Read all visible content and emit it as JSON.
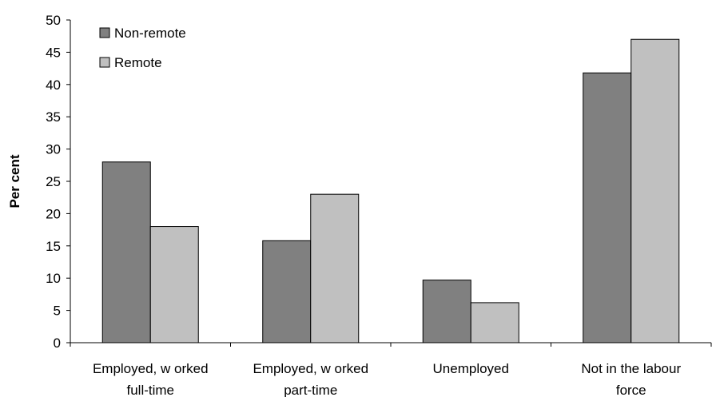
{
  "chart_data": {
    "type": "bar",
    "title": "",
    "xlabel": "",
    "ylabel": "Per cent",
    "ylim": [
      0,
      50
    ],
    "ytick_step": 5,
    "grid": false,
    "legend_position": "top-left",
    "categories": [
      [
        "Employed, w orked",
        "full-time"
      ],
      [
        "Employed, w orked",
        "part-time"
      ],
      [
        "Unemployed"
      ],
      [
        "Not in the labour",
        "force"
      ]
    ],
    "series": [
      {
        "name": "Non-remote",
        "color": "#808080",
        "values": [
          28,
          15.8,
          9.7,
          41.8
        ]
      },
      {
        "name": "Remote",
        "color": "#c0c0c0",
        "values": [
          18,
          23,
          6.2,
          47
        ]
      }
    ]
  }
}
